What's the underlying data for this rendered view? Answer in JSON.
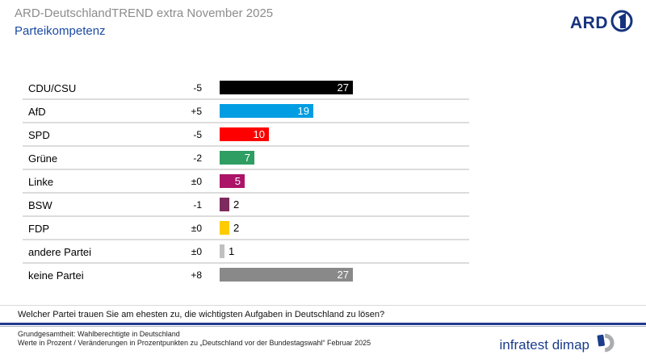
{
  "header": {
    "title": "ARD-DeutschlandTREND extra November 2025",
    "subtitle": "Parteikompetenz",
    "ard_logo_text": "ARD"
  },
  "chart_data": {
    "type": "bar",
    "orientation": "horizontal",
    "title": "Parteikompetenz",
    "categories": [
      "CDU/CSU",
      "AfD",
      "SPD",
      "Grüne",
      "Linke",
      "BSW",
      "FDP",
      "andere Partei",
      "keine Partei"
    ],
    "values": [
      27,
      19,
      10,
      7,
      5,
      2,
      2,
      1,
      27
    ],
    "changes": [
      "-5",
      "+5",
      "-5",
      "-2",
      "±0",
      "-1",
      "±0",
      "±0",
      "+8"
    ],
    "bar_colors": [
      "#000000",
      "#009de2",
      "#ff0000",
      "#2f9e62",
      "#ac1468",
      "#7d2b5e",
      "#ffcc00",
      "#c0c0c0",
      "#898989"
    ],
    "value_label_inside_min": 5,
    "xlim": [
      0,
      55
    ],
    "grid": false,
    "legend": false
  },
  "footer": {
    "question": "Welcher Partei trauen Sie am ehesten zu, die wichtigsten Aufgaben in Deutschland zu lösen?",
    "source_line1": "Grundgesamtheit: Wahlberechtigte in Deutschland",
    "source_line2": "Werte in Prozent / Veränderungen in Prozentpunkten zu „Deutschland vor der Bundestagswahl“ Februar 2025",
    "brand": "infratest dimap"
  },
  "colors": {
    "accent_blue": "#1b4aa2",
    "line_navy": "#203a8e",
    "ard_navy": "#16337f",
    "divider_gray": "#dcdcdc"
  },
  "icons": {
    "ard_one_icon": "ard-one-in-circle",
    "dimap_icon": "dimap-d-mark"
  }
}
